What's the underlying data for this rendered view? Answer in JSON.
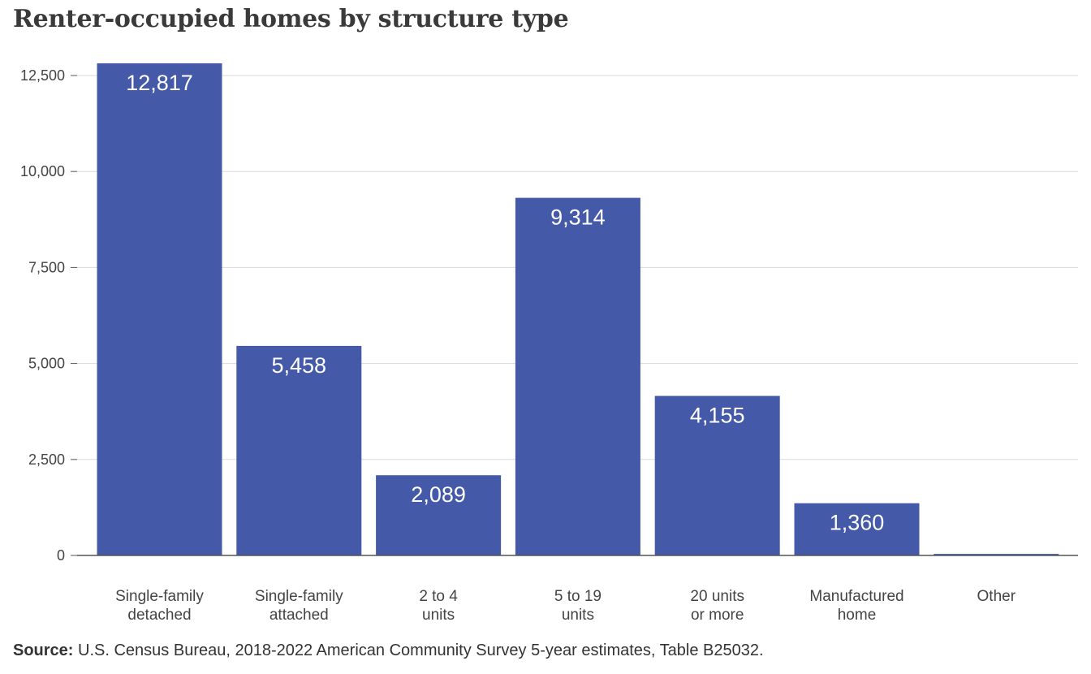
{
  "title": "Renter-occupied homes by structure type",
  "source": {
    "label": "Source:",
    "text": "U.S. Census Bureau, 2018-2022 American Community Survey 5-year estimates, Table B25032."
  },
  "colors": {
    "bar": "#445aa8",
    "grid": "#d9d9d9",
    "axis": "#555555"
  },
  "chart_data": {
    "type": "bar",
    "categories": [
      [
        "Single-family",
        "detached"
      ],
      [
        "Single-family",
        "attached"
      ],
      [
        "2 to 4",
        "units"
      ],
      [
        "5 to 19",
        "units"
      ],
      [
        "20 units",
        "or more"
      ],
      [
        "Manufactured",
        "home"
      ],
      [
        "Other"
      ]
    ],
    "values": [
      12817,
      5458,
      2089,
      9314,
      4155,
      1360,
      40
    ],
    "data_labels": [
      "12,817",
      "5,458",
      "2,089",
      "9,314",
      "4,155",
      "1,360",
      ""
    ],
    "yticks": [
      0,
      2500,
      5000,
      7500,
      10000,
      12500
    ],
    "ytick_labels": [
      "0",
      "2,500",
      "5,000",
      "7,500",
      "10,000",
      "12,500"
    ],
    "ylim": [
      0,
      12817
    ],
    "xlabel": "",
    "ylabel": "",
    "grid": true
  }
}
